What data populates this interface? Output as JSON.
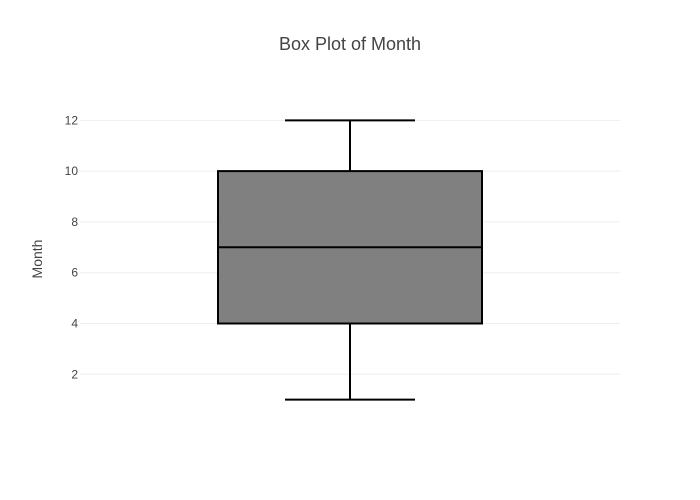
{
  "chart_data": {
    "type": "box",
    "title": "Box Plot of Month",
    "ylabel": "Month",
    "xlabel": "",
    "ylim": [
      0.2,
      12.8
    ],
    "yticks": [
      2,
      4,
      6,
      8,
      10,
      12
    ],
    "grid": true,
    "series": [
      {
        "min": 1,
        "q1": 4,
        "median": 7,
        "q3": 10,
        "max": 12
      }
    ],
    "colors": {
      "box_fill": "#808080",
      "box_stroke": "#000000",
      "grid": "#eeeeee",
      "text": "#444444"
    }
  }
}
